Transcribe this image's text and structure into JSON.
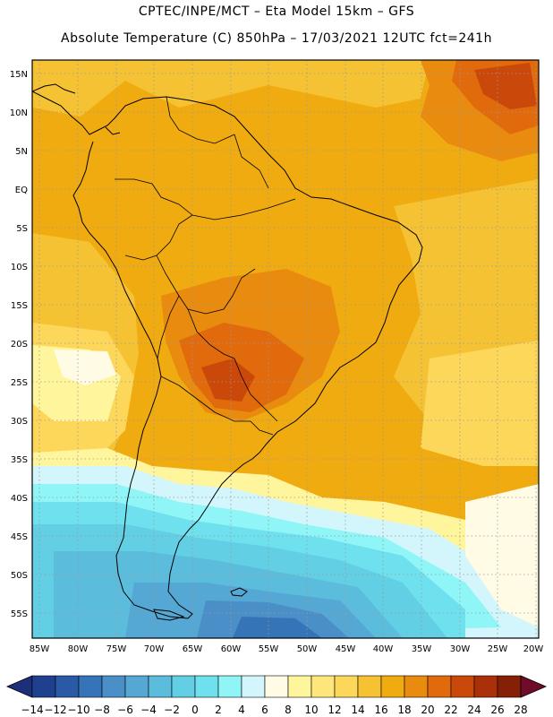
{
  "header": {
    "line1": "CPTEC/INPE/MCT –  Eta Model 15km – GFS",
    "line2": "Absolute Temperature (C) 850hPa – 17/03/2021 12UTC fct=241h"
  },
  "axes": {
    "lat_labels": [
      "15N",
      "10N",
      "5N",
      "EQ",
      "5S",
      "10S",
      "15S",
      "20S",
      "25S",
      "30S",
      "35S",
      "40S",
      "45S",
      "50S",
      "55S"
    ],
    "lon_labels": [
      "85W",
      "80W",
      "75W",
      "70W",
      "65W",
      "60W",
      "55W",
      "50W",
      "45W",
      "40W",
      "35W",
      "30W",
      "25W",
      "20W"
    ]
  },
  "colorbar": {
    "labels": [
      "-14",
      "-12",
      "-10",
      "-8",
      "-6",
      "-4",
      "-2",
      "0",
      "2",
      "4",
      "6",
      "8",
      "10",
      "12",
      "14",
      "16",
      "18",
      "20",
      "22",
      "24",
      "26",
      "28"
    ],
    "colors": [
      "#1f3f8f",
      "#2a5aa5",
      "#3574b7",
      "#4a8fc8",
      "#55a8d4",
      "#5cbcdc",
      "#62cfe4",
      "#6fe0ee",
      "#8ff5f7",
      "#d2f6fb",
      "#fffbe5",
      "#fff59c",
      "#ffe67a",
      "#fcd75a",
      "#f5c233",
      "#f0ab10",
      "#e88b0e",
      "#e06a0c",
      "#c9480a",
      "#a93008",
      "#851f06"
    ],
    "low_arrow_color": "#1c2f7a",
    "high_arrow_color": "#6e0c2a"
  }
}
